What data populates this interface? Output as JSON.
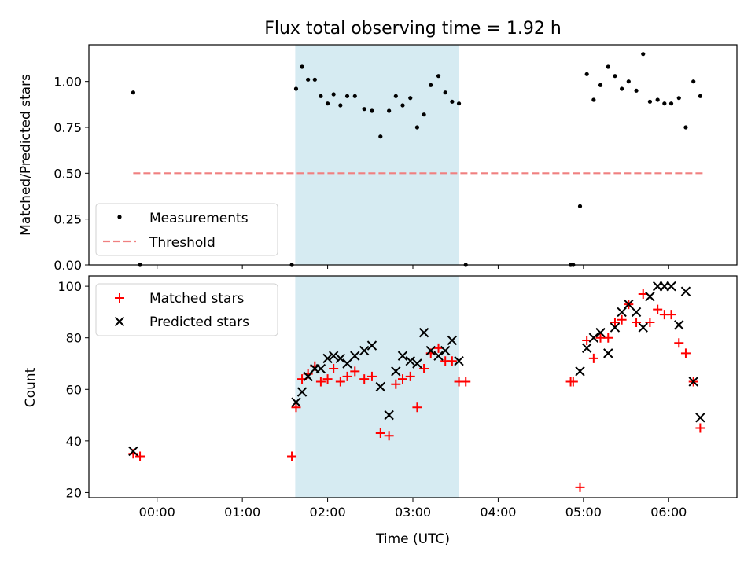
{
  "title": "Flux total observing time = 1.92 h",
  "colors": {
    "measurement": "#000000",
    "threshold": "#f08080",
    "shade": "#add8e6",
    "matched": "#ff0000",
    "predicted": "#000000"
  },
  "chart_data": [
    {
      "type": "scatter",
      "ylabel": "Matched/Predicted stars",
      "xlabel": "",
      "x_unit": "hours UTC (negative = before 00:00)",
      "xlim": [
        -0.8,
        6.8
      ],
      "ylim": [
        0.0,
        1.2
      ],
      "yticks": [
        0.0,
        0.25,
        0.5,
        0.75,
        1.0
      ],
      "ytick_labels": [
        "0.00",
        "0.25",
        "0.50",
        "0.75",
        "1.00"
      ],
      "shaded_span": [
        1.62,
        3.54
      ],
      "legend_position": "lower-left",
      "series": [
        {
          "name": "Measurements",
          "kind": "points",
          "points": [
            [
              -0.28,
              0.94
            ],
            [
              -0.2,
              0.0
            ],
            [
              1.58,
              0.0
            ],
            [
              1.63,
              0.96
            ],
            [
              1.7,
              1.08
            ],
            [
              1.77,
              1.01
            ],
            [
              1.85,
              1.01
            ],
            [
              1.92,
              0.92
            ],
            [
              2.0,
              0.88
            ],
            [
              2.07,
              0.93
            ],
            [
              2.15,
              0.87
            ],
            [
              2.23,
              0.92
            ],
            [
              2.32,
              0.92
            ],
            [
              2.43,
              0.85
            ],
            [
              2.52,
              0.84
            ],
            [
              2.62,
              0.7
            ],
            [
              2.72,
              0.84
            ],
            [
              2.8,
              0.92
            ],
            [
              2.88,
              0.87
            ],
            [
              2.97,
              0.91
            ],
            [
              3.05,
              0.75
            ],
            [
              3.13,
              0.82
            ],
            [
              3.21,
              0.98
            ],
            [
              3.3,
              1.03
            ],
            [
              3.38,
              0.94
            ],
            [
              3.46,
              0.89
            ],
            [
              3.54,
              0.88
            ],
            [
              3.62,
              0.0
            ],
            [
              4.85,
              0.0
            ],
            [
              4.88,
              0.0
            ],
            [
              4.96,
              0.32
            ],
            [
              5.04,
              1.04
            ],
            [
              5.12,
              0.9
            ],
            [
              5.2,
              0.98
            ],
            [
              5.29,
              1.08
            ],
            [
              5.37,
              1.03
            ],
            [
              5.45,
              0.96
            ],
            [
              5.53,
              1.0
            ],
            [
              5.62,
              0.95
            ],
            [
              5.7,
              1.15
            ],
            [
              5.78,
              0.89
            ],
            [
              5.87,
              0.9
            ],
            [
              5.95,
              0.88
            ],
            [
              6.03,
              0.88
            ],
            [
              6.12,
              0.91
            ],
            [
              6.2,
              0.75
            ],
            [
              6.29,
              1.0
            ],
            [
              6.37,
              0.92
            ]
          ]
        },
        {
          "name": "Threshold",
          "kind": "dashed-line",
          "points": [
            [
              -0.28,
              0.5
            ],
            [
              6.4,
              0.5
            ]
          ]
        }
      ]
    },
    {
      "type": "scatter",
      "xlabel": "Time (UTC)",
      "ylabel": "Count",
      "x_unit": "hours UTC (negative = before 00:00)",
      "xlim": [
        -0.8,
        6.8
      ],
      "ylim": [
        18,
        104
      ],
      "yticks": [
        20,
        40,
        60,
        80,
        100
      ],
      "ytick_labels": [
        "20",
        "40",
        "60",
        "80",
        "100"
      ],
      "xticks": [
        0,
        1,
        2,
        3,
        4,
        5,
        6
      ],
      "xtick_labels": [
        "00:00",
        "01:00",
        "02:00",
        "03:00",
        "04:00",
        "05:00",
        "06:00"
      ],
      "shaded_span": [
        1.62,
        3.54
      ],
      "legend_position": "upper-left",
      "series": [
        {
          "name": "Matched stars",
          "marker": "plus",
          "points": [
            [
              -0.28,
              35
            ],
            [
              -0.2,
              34
            ],
            [
              1.58,
              34
            ],
            [
              1.63,
              53
            ],
            [
              1.7,
              64
            ],
            [
              1.77,
              66
            ],
            [
              1.85,
              69
            ],
            [
              1.92,
              63
            ],
            [
              2.0,
              64
            ],
            [
              2.07,
              68
            ],
            [
              2.15,
              63
            ],
            [
              2.23,
              65
            ],
            [
              2.32,
              67
            ],
            [
              2.43,
              64
            ],
            [
              2.52,
              65
            ],
            [
              2.62,
              43
            ],
            [
              2.72,
              42
            ],
            [
              2.8,
              62
            ],
            [
              2.88,
              64
            ],
            [
              2.97,
              65
            ],
            [
              3.05,
              53
            ],
            [
              3.13,
              68
            ],
            [
              3.21,
              74
            ],
            [
              3.3,
              76
            ],
            [
              3.38,
              71
            ],
            [
              3.46,
              71
            ],
            [
              3.54,
              63
            ],
            [
              3.62,
              63
            ],
            [
              4.85,
              63
            ],
            [
              4.88,
              63
            ],
            [
              4.96,
              22
            ],
            [
              5.04,
              79
            ],
            [
              5.12,
              72
            ],
            [
              5.2,
              80
            ],
            [
              5.29,
              80
            ],
            [
              5.37,
              86
            ],
            [
              5.45,
              87
            ],
            [
              5.53,
              93
            ],
            [
              5.62,
              86
            ],
            [
              5.7,
              97
            ],
            [
              5.78,
              86
            ],
            [
              5.87,
              91
            ],
            [
              5.95,
              89
            ],
            [
              6.03,
              89
            ],
            [
              6.12,
              78
            ],
            [
              6.2,
              74
            ],
            [
              6.29,
              63
            ],
            [
              6.37,
              45
            ]
          ]
        },
        {
          "name": "Predicted stars",
          "marker": "x",
          "points": [
            [
              -0.28,
              36
            ],
            [
              1.63,
              55
            ],
            [
              1.7,
              59
            ],
            [
              1.77,
              65
            ],
            [
              1.85,
              68
            ],
            [
              1.92,
              68
            ],
            [
              2.0,
              72
            ],
            [
              2.07,
              73
            ],
            [
              2.15,
              72
            ],
            [
              2.23,
              70
            ],
            [
              2.32,
              73
            ],
            [
              2.43,
              75
            ],
            [
              2.52,
              77
            ],
            [
              2.62,
              61
            ],
            [
              2.72,
              50
            ],
            [
              2.8,
              67
            ],
            [
              2.88,
              73
            ],
            [
              2.97,
              71
            ],
            [
              3.05,
              70
            ],
            [
              3.13,
              82
            ],
            [
              3.21,
              75
            ],
            [
              3.3,
              73
            ],
            [
              3.38,
              75
            ],
            [
              3.46,
              79
            ],
            [
              3.54,
              71
            ],
            [
              4.96,
              67
            ],
            [
              5.04,
              76
            ],
            [
              5.12,
              80
            ],
            [
              5.2,
              82
            ],
            [
              5.29,
              74
            ],
            [
              5.37,
              84
            ],
            [
              5.45,
              90
            ],
            [
              5.53,
              93
            ],
            [
              5.62,
              90
            ],
            [
              5.7,
              84
            ],
            [
              5.78,
              96
            ],
            [
              5.87,
              100
            ],
            [
              5.95,
              100
            ],
            [
              6.03,
              100
            ],
            [
              6.12,
              85
            ],
            [
              6.2,
              98
            ],
            [
              6.29,
              63
            ],
            [
              6.37,
              49
            ]
          ]
        }
      ]
    }
  ]
}
